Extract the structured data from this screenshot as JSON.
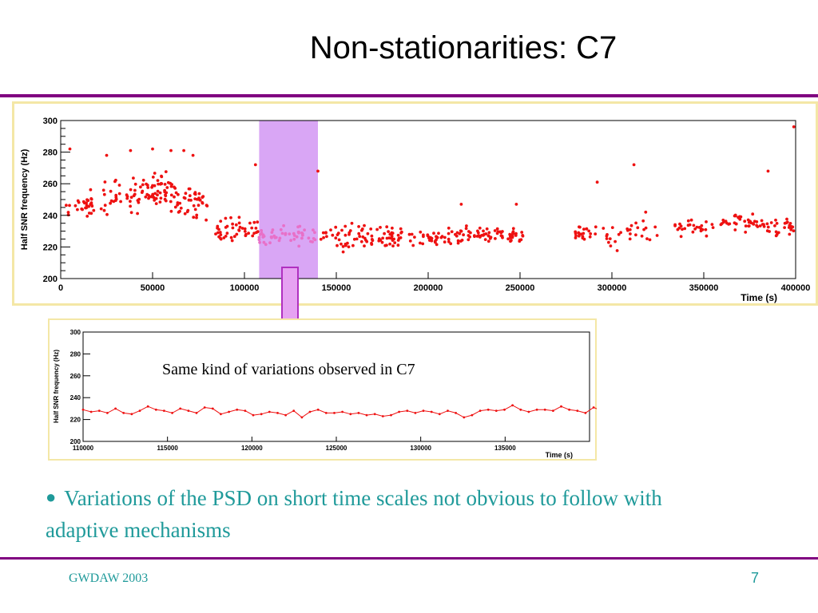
{
  "slide": {
    "title": "Non-stationarities: C7",
    "callout": "Same kind of variations observed in C7",
    "bullet": "Variations of the PSD on short time scales not obvious to follow with adaptive mechanisms",
    "footer_left": "GWDAW 2003",
    "footer_right": "7"
  },
  "colors": {
    "rule": "#800080",
    "frame": "#f4e7a6",
    "points": "#ee1111",
    "band": "#d9a6f5",
    "arrow_fill": "#e6a2f2",
    "arrow_stroke": "#b030c0",
    "text_teal": "#1f9a9a"
  },
  "chart_data": [
    {
      "type": "scatter",
      "title": "",
      "xlabel": "Time (s)",
      "ylabel": "Half SNR frequency (Hz)",
      "xlim": [
        0,
        400000
      ],
      "ylim": [
        200,
        300
      ],
      "xticks": [
        0,
        50000,
        100000,
        150000,
        200000,
        250000,
        300000,
        350000,
        400000
      ],
      "yticks": [
        200,
        220,
        240,
        260,
        280,
        300
      ],
      "grid": false,
      "highlight": {
        "x_from": 108000,
        "x_to": 140000
      },
      "outliers": [
        {
          "x": 5000,
          "y": 282
        },
        {
          "x": 25000,
          "y": 278
        },
        {
          "x": 38000,
          "y": 281
        },
        {
          "x": 50000,
          "y": 282
        },
        {
          "x": 60000,
          "y": 281
        },
        {
          "x": 67000,
          "y": 281
        },
        {
          "x": 72000,
          "y": 278
        },
        {
          "x": 106000,
          "y": 272
        },
        {
          "x": 140000,
          "y": 268
        },
        {
          "x": 218000,
          "y": 247
        },
        {
          "x": 248000,
          "y": 247
        },
        {
          "x": 292000,
          "y": 261
        },
        {
          "x": 312000,
          "y": 272
        },
        {
          "x": 385000,
          "y": 268
        },
        {
          "x": 399000,
          "y": 296
        }
      ],
      "segments": [
        {
          "x_from": 3000,
          "x_to": 18000,
          "mean": 247,
          "spread": 6,
          "count": 30
        },
        {
          "x_from": 22000,
          "x_to": 62000,
          "mean": 254,
          "spread": 8,
          "count": 95
        },
        {
          "x_from": 62000,
          "x_to": 80000,
          "mean": 248,
          "spread": 7,
          "count": 45
        },
        {
          "x_from": 84000,
          "x_to": 108000,
          "mean": 231,
          "spread": 5,
          "count": 45
        },
        {
          "x_from": 108000,
          "x_to": 140000,
          "mean": 227,
          "spread": 4,
          "count": 50
        },
        {
          "x_from": 140000,
          "x_to": 170000,
          "mean": 226,
          "spread": 6,
          "count": 50
        },
        {
          "x_from": 172000,
          "x_to": 212000,
          "mean": 226,
          "spread": 4,
          "count": 70
        },
        {
          "x_from": 212000,
          "x_to": 252000,
          "mean": 227,
          "spread": 4,
          "count": 75
        },
        {
          "x_from": 278000,
          "x_to": 292000,
          "mean": 228,
          "spread": 4,
          "count": 22
        },
        {
          "x_from": 294000,
          "x_to": 305000,
          "mean": 225,
          "spread": 6,
          "count": 12
        },
        {
          "x_from": 308000,
          "x_to": 325000,
          "mean": 233,
          "spread": 6,
          "count": 18
        },
        {
          "x_from": 334000,
          "x_to": 352000,
          "mean": 232,
          "spread": 4,
          "count": 25
        },
        {
          "x_from": 354000,
          "x_to": 365000,
          "mean": 236,
          "spread": 4,
          "count": 10
        },
        {
          "x_from": 366000,
          "x_to": 382000,
          "mean": 236,
          "spread": 5,
          "count": 30
        },
        {
          "x_from": 382000,
          "x_to": 399000,
          "mean": 231,
          "spread": 5,
          "count": 30
        }
      ]
    },
    {
      "type": "line",
      "title": "",
      "xlabel": "Time (s)",
      "ylabel": "Half SNR frequency (Hz)",
      "xlim": [
        110000,
        140000
      ],
      "ylim": [
        200,
        300
      ],
      "xticks": [
        110000,
        115000,
        120000,
        125000,
        130000,
        135000
      ],
      "yticks": [
        200,
        220,
        240,
        260,
        280,
        300
      ],
      "grid": false,
      "x_start": 110000,
      "x_step": 480,
      "values": [
        229,
        227,
        228,
        226,
        230,
        226,
        225,
        228,
        232,
        229,
        228,
        226,
        230,
        228,
        226,
        231,
        230,
        225,
        227,
        229,
        228,
        224,
        225,
        227,
        226,
        224,
        228,
        222,
        227,
        229,
        226,
        226,
        227,
        225,
        226,
        224,
        225,
        223,
        224,
        227,
        228,
        226,
        228,
        227,
        225,
        228,
        226,
        222,
        224,
        228,
        229,
        228,
        229,
        233,
        229,
        227,
        229,
        229,
        228,
        232,
        229,
        228,
        226,
        231,
        228,
        229,
        227,
        230,
        233,
        229,
        229,
        230,
        227,
        229,
        229,
        232
      ]
    }
  ]
}
